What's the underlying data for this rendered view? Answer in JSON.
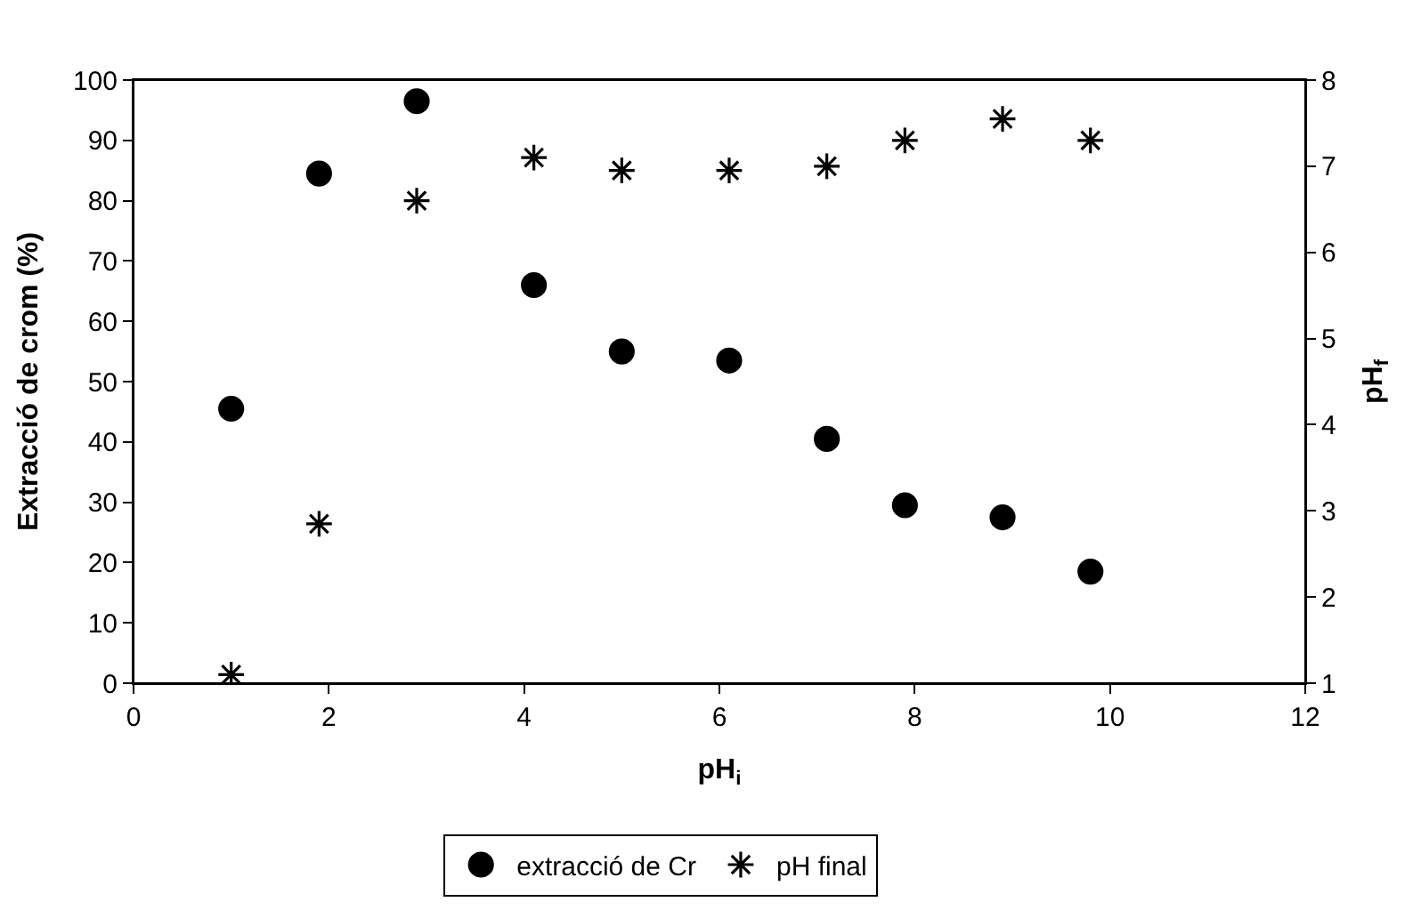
{
  "chart_data": {
    "type": "scatter",
    "xlabel": "pH$_{i}$",
    "ylabel": "Extracció de crom (%)",
    "y2label": "pH$_{f}$",
    "x": [
      1.0,
      1.9,
      2.9,
      4.1,
      5.0,
      6.1,
      7.1,
      7.9,
      8.9,
      9.8
    ],
    "series": [
      {
        "name": "extracció de Cr",
        "color": "#000000",
        "marker": "circle",
        "values": [
          45.5,
          84.5,
          96.5,
          66,
          55,
          53.5,
          40.5,
          29.5,
          27.5,
          18.5
        ]
      },
      {
        "name": "pH final",
        "color": "#000000",
        "marker": "cross",
        "axis": "y2",
        "values": [
          1.1,
          2.85,
          6.6,
          7.1,
          6.95,
          6.95,
          7.0,
          7.3,
          7.55,
          7.3
        ]
      }
    ],
    "xlim": [
      0,
      12
    ],
    "xticks": [
      0,
      2,
      4,
      6,
      8,
      10,
      12
    ],
    "ylim": [
      0,
      100
    ],
    "yticks": [
      0,
      10,
      20,
      30,
      40,
      50,
      60,
      70,
      80,
      90,
      100
    ],
    "y2lim": [
      1,
      8
    ],
    "y2ticks": [
      1,
      2,
      3,
      4,
      5,
      6,
      7,
      8
    ],
    "legend": "bottom"
  }
}
